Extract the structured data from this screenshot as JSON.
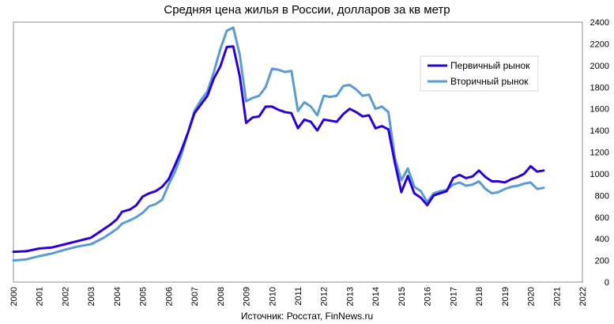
{
  "chart_data": {
    "type": "line",
    "title": "Средняя цена жилья в России, долларов за кв метр",
    "source": "Источник: Росстат, FinNews.ru",
    "xlabel": "",
    "ylabel": "",
    "xlim": [
      2000,
      2022
    ],
    "ylim": [
      0,
      2400
    ],
    "y_ticks": [
      0,
      200,
      400,
      600,
      800,
      1000,
      1200,
      1400,
      1600,
      1800,
      2000,
      2200,
      2400
    ],
    "x_ticks": [
      2000,
      2001,
      2002,
      2003,
      2004,
      2005,
      2006,
      2007,
      2008,
      2009,
      2010,
      2011,
      2012,
      2013,
      2014,
      2015,
      2016,
      2017,
      2018,
      2019,
      2020,
      2021,
      2022
    ],
    "grid": true,
    "legend_position": "top-right",
    "series": [
      {
        "name": "Первичный рынок",
        "color": "#2b00d6",
        "points": [
          [
            2000.0,
            280
          ],
          [
            2000.5,
            285
          ],
          [
            2001.0,
            310
          ],
          [
            2001.5,
            320
          ],
          [
            2002.0,
            350
          ],
          [
            2002.5,
            380
          ],
          [
            2003.0,
            410
          ],
          [
            2003.25,
            450
          ],
          [
            2003.5,
            490
          ],
          [
            2003.75,
            530
          ],
          [
            2004.0,
            580
          ],
          [
            2004.2,
            650
          ],
          [
            2004.5,
            670
          ],
          [
            2004.75,
            710
          ],
          [
            2005.0,
            790
          ],
          [
            2005.25,
            820
          ],
          [
            2005.5,
            840
          ],
          [
            2005.75,
            880
          ],
          [
            2006.0,
            950
          ],
          [
            2006.25,
            1080
          ],
          [
            2006.5,
            1220
          ],
          [
            2006.75,
            1380
          ],
          [
            2007.0,
            1560
          ],
          [
            2007.25,
            1640
          ],
          [
            2007.5,
            1720
          ],
          [
            2007.75,
            1880
          ],
          [
            2008.0,
            1990
          ],
          [
            2008.25,
            2170
          ],
          [
            2008.5,
            2175
          ],
          [
            2008.75,
            1900
          ],
          [
            2009.0,
            1470
          ],
          [
            2009.25,
            1520
          ],
          [
            2009.5,
            1530
          ],
          [
            2009.75,
            1620
          ],
          [
            2010.0,
            1620
          ],
          [
            2010.25,
            1590
          ],
          [
            2010.5,
            1570
          ],
          [
            2010.75,
            1560
          ],
          [
            2011.0,
            1420
          ],
          [
            2011.25,
            1500
          ],
          [
            2011.5,
            1480
          ],
          [
            2011.75,
            1400
          ],
          [
            2012.0,
            1500
          ],
          [
            2012.25,
            1490
          ],
          [
            2012.5,
            1480
          ],
          [
            2012.75,
            1550
          ],
          [
            2013.0,
            1600
          ],
          [
            2013.25,
            1570
          ],
          [
            2013.5,
            1530
          ],
          [
            2013.75,
            1540
          ],
          [
            2014.0,
            1420
          ],
          [
            2014.25,
            1440
          ],
          [
            2014.5,
            1410
          ],
          [
            2014.75,
            1100
          ],
          [
            2015.0,
            830
          ],
          [
            2015.25,
            980
          ],
          [
            2015.5,
            820
          ],
          [
            2015.75,
            780
          ],
          [
            2016.0,
            710
          ],
          [
            2016.25,
            800
          ],
          [
            2016.5,
            820
          ],
          [
            2016.75,
            840
          ],
          [
            2017.0,
            960
          ],
          [
            2017.25,
            990
          ],
          [
            2017.5,
            960
          ],
          [
            2017.75,
            975
          ],
          [
            2018.0,
            1030
          ],
          [
            2018.25,
            970
          ],
          [
            2018.5,
            930
          ],
          [
            2018.75,
            930
          ],
          [
            2019.0,
            920
          ],
          [
            2019.25,
            950
          ],
          [
            2019.5,
            970
          ],
          [
            2019.75,
            1000
          ],
          [
            2020.0,
            1070
          ],
          [
            2020.25,
            1020
          ],
          [
            2020.5,
            1030
          ]
        ]
      },
      {
        "name": "Вторичный рынок",
        "color": "#5b9bd5",
        "points": [
          [
            2000.0,
            200
          ],
          [
            2000.5,
            210
          ],
          [
            2001.0,
            240
          ],
          [
            2001.5,
            265
          ],
          [
            2002.0,
            300
          ],
          [
            2002.5,
            330
          ],
          [
            2003.0,
            350
          ],
          [
            2003.25,
            380
          ],
          [
            2003.5,
            410
          ],
          [
            2003.75,
            450
          ],
          [
            2004.0,
            490
          ],
          [
            2004.2,
            540
          ],
          [
            2004.5,
            570
          ],
          [
            2004.75,
            600
          ],
          [
            2005.0,
            640
          ],
          [
            2005.25,
            700
          ],
          [
            2005.5,
            720
          ],
          [
            2005.75,
            760
          ],
          [
            2006.0,
            900
          ],
          [
            2006.25,
            1020
          ],
          [
            2006.5,
            1180
          ],
          [
            2006.75,
            1380
          ],
          [
            2007.0,
            1580
          ],
          [
            2007.25,
            1680
          ],
          [
            2007.5,
            1760
          ],
          [
            2007.75,
            1940
          ],
          [
            2008.0,
            2150
          ],
          [
            2008.25,
            2320
          ],
          [
            2008.5,
            2350
          ],
          [
            2008.75,
            2100
          ],
          [
            2009.0,
            1670
          ],
          [
            2009.25,
            1700
          ],
          [
            2009.5,
            1720
          ],
          [
            2009.75,
            1800
          ],
          [
            2010.0,
            1970
          ],
          [
            2010.25,
            1960
          ],
          [
            2010.5,
            1940
          ],
          [
            2010.75,
            1950
          ],
          [
            2011.0,
            1580
          ],
          [
            2011.25,
            1660
          ],
          [
            2011.5,
            1620
          ],
          [
            2011.75,
            1540
          ],
          [
            2012.0,
            1720
          ],
          [
            2012.25,
            1710
          ],
          [
            2012.5,
            1720
          ],
          [
            2012.75,
            1810
          ],
          [
            2013.0,
            1820
          ],
          [
            2013.25,
            1780
          ],
          [
            2013.5,
            1720
          ],
          [
            2013.75,
            1730
          ],
          [
            2014.0,
            1600
          ],
          [
            2014.25,
            1620
          ],
          [
            2014.5,
            1570
          ],
          [
            2014.75,
            1150
          ],
          [
            2015.0,
            940
          ],
          [
            2015.25,
            1050
          ],
          [
            2015.5,
            880
          ],
          [
            2015.75,
            840
          ],
          [
            2016.0,
            740
          ],
          [
            2016.25,
            820
          ],
          [
            2016.5,
            840
          ],
          [
            2016.75,
            850
          ],
          [
            2017.0,
            900
          ],
          [
            2017.25,
            920
          ],
          [
            2017.5,
            890
          ],
          [
            2017.75,
            900
          ],
          [
            2018.0,
            930
          ],
          [
            2018.25,
            860
          ],
          [
            2018.5,
            820
          ],
          [
            2018.75,
            830
          ],
          [
            2019.0,
            860
          ],
          [
            2019.25,
            880
          ],
          [
            2019.5,
            890
          ],
          [
            2019.75,
            910
          ],
          [
            2020.0,
            920
          ],
          [
            2020.25,
            860
          ],
          [
            2020.5,
            870
          ]
        ]
      }
    ]
  }
}
